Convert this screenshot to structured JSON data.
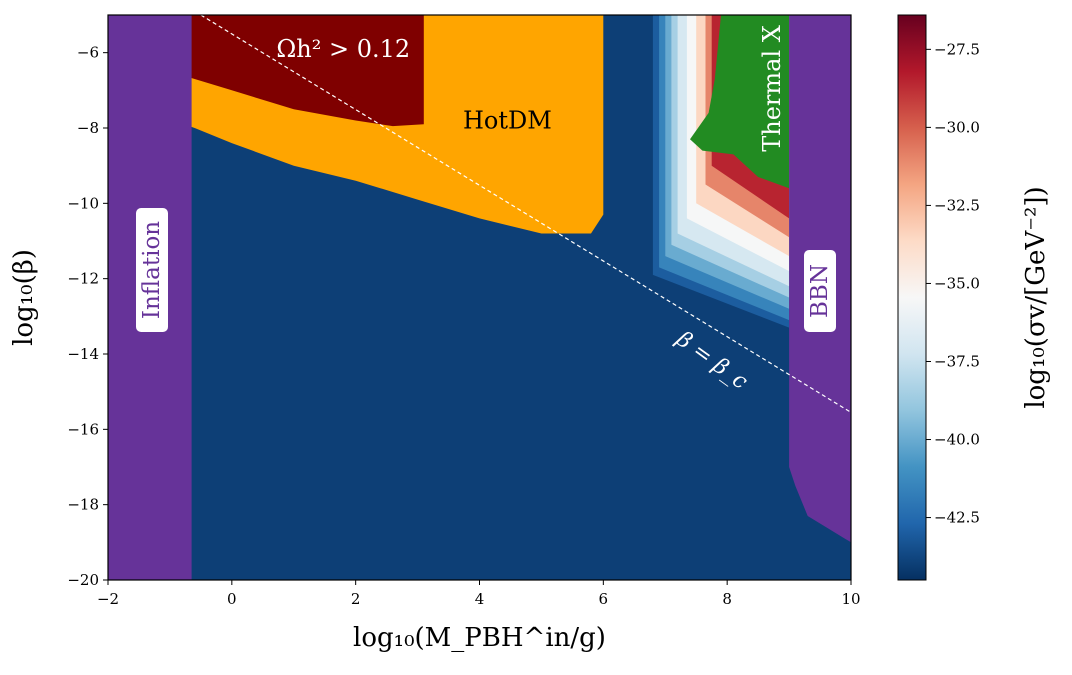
{
  "chart_data": {
    "type": "heatmap",
    "xlabel": "log₁₀(M_PBH^in/g)",
    "ylabel": "log₁₀(β)",
    "colorbar_label": "log₁₀(σv/[GeV⁻²])",
    "xlim": [
      -2,
      10
    ],
    "ylim": [
      -20,
      -5
    ],
    "xticks": [
      -2,
      0,
      2,
      4,
      6,
      8,
      10
    ],
    "yticks": [
      -6,
      -8,
      -10,
      -12,
      -14,
      -16,
      -18,
      -20
    ],
    "xtick_labels": [
      "−2",
      "0",
      "2",
      "4",
      "6",
      "8",
      "10"
    ],
    "ytick_labels": [
      "−6",
      "−8",
      "−10",
      "−12",
      "−14",
      "−16",
      "−18",
      "−20"
    ],
    "colorbar_range": [
      -44.5,
      -26.4
    ],
    "colorbar_ticks": [
      -27.5,
      -30.0,
      -32.5,
      -35.0,
      -37.5,
      -40.0,
      -42.5
    ],
    "colorbar_tick_labels": [
      "−27.5",
      "−30.0",
      "−32.5",
      "−35.0",
      "−37.5",
      "−40.0",
      "−42.5"
    ],
    "colormap": "RdBu_r",
    "grid": false,
    "background_value": -44.0,
    "regions": [
      {
        "label": "Ωh² > 0.12",
        "color": "#7f0000"
      },
      {
        "label": "HotDM",
        "color": "#ffa500"
      },
      {
        "label": "Thermal X",
        "color": "#228b22"
      },
      {
        "label": "Inflation",
        "color": "#663399"
      },
      {
        "label": "BBN",
        "color": "#663399"
      }
    ],
    "overclosure_boundary": [
      [
        -2,
        -5.9
      ],
      [
        -1,
        -6.5
      ],
      [
        0,
        -7.0
      ],
      [
        1,
        -7.5
      ],
      [
        2,
        -7.8
      ],
      [
        2.6,
        -7.95
      ],
      [
        3.1,
        -7.9
      ],
      [
        3.1,
        -5
      ]
    ],
    "hotdm_boundary": [
      [
        -2,
        -7.2
      ],
      [
        -0.6,
        -8.0
      ],
      [
        0,
        -8.4
      ],
      [
        1,
        -9.0
      ],
      [
        2,
        -9.4
      ],
      [
        3,
        -9.9
      ],
      [
        4,
        -10.4
      ],
      [
        5,
        -10.8
      ],
      [
        5.8,
        -10.8
      ],
      [
        6,
        -10.3
      ],
      [
        6,
        -5
      ]
    ],
    "inflation_edge_x": -0.65,
    "bbn_boundary": [
      [
        9,
        -5
      ],
      [
        9,
        -17.0
      ],
      [
        9.1,
        -17.5
      ],
      [
        9.3,
        -18.3
      ],
      [
        9.6,
        -18.6
      ],
      [
        9.9,
        -18.9
      ],
      [
        10,
        -19.0
      ]
    ],
    "beta_c_line": [
      [
        -0.5,
        -5.0
      ],
      [
        10,
        -15.55
      ]
    ],
    "beta_c_label": "β = β_c",
    "heat_layers": [
      {
        "x": 6.8,
        "ymin": -11.9,
        "ymax": -5,
        "value": -43.0
      },
      {
        "x": 6.9,
        "ymin": -11.7,
        "ymax": -5,
        "value": -41.5
      },
      {
        "x": 7.0,
        "ymin": -11.4,
        "ymax": -5,
        "value": -40.0
      },
      {
        "x": 7.1,
        "ymin": -11.1,
        "ymax": -5,
        "value": -38.5
      },
      {
        "x": 7.2,
        "ymin": -10.8,
        "ymax": -5,
        "value": -37.0
      },
      {
        "x": 7.35,
        "ymin": -10.4,
        "ymax": -5,
        "value": -35.5
      },
      {
        "x": 7.5,
        "ymin": -10.0,
        "ymax": -5,
        "value": -33.5
      },
      {
        "x": 7.65,
        "ymin": -9.5,
        "ymax": -5,
        "value": -31.0
      },
      {
        "x": 7.75,
        "ymin": -9.0,
        "ymax": -5,
        "value": -28.5
      }
    ],
    "thermal_region": [
      [
        7.4,
        -8.3
      ],
      [
        7.7,
        -7.6
      ],
      [
        7.8,
        -6.7
      ],
      [
        7.9,
        -5
      ],
      [
        9,
        -5
      ],
      [
        9,
        -9.6
      ],
      [
        8.5,
        -9.3
      ],
      [
        8.1,
        -8.7
      ],
      [
        7.6,
        -8.6
      ]
    ]
  }
}
